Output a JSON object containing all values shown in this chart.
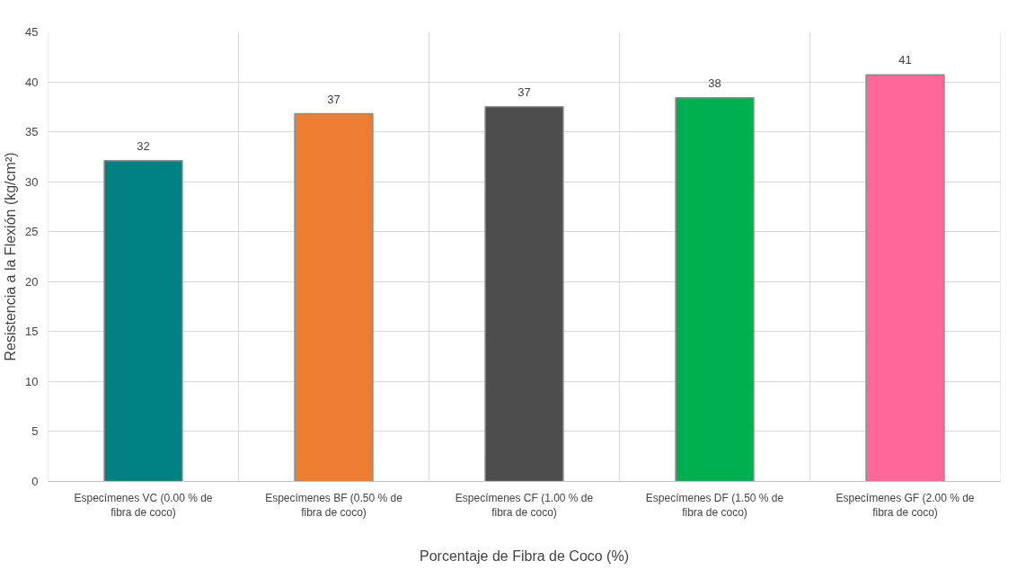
{
  "chart_data": {
    "type": "bar",
    "xlabel": "Porcentaje de Fibra de Coco (%)",
    "ylabel": "Resistencia a la Flexión (kg/cm²)",
    "categories": [
      "Especímenes VC (0.00 % de fibra de coco)",
      "Especímenes BF (0.50 % de fibra de coco)",
      "Especímenes CF (1.00 % de fibra de coco)",
      "Especímenes DF (1.50 % de fibra de coco)",
      "Especímenes GF (2.00 % de fibra de coco)"
    ],
    "values": [
      32.1,
      36.8,
      37.5,
      38.4,
      40.7
    ],
    "value_labels": [
      "32",
      "37",
      "37",
      "38",
      "41"
    ],
    "colors": [
      "#008080",
      "#ed7d31",
      "#4d4d4d",
      "#00b050",
      "#ff6699"
    ],
    "ylim": [
      0,
      45
    ],
    "yticks": [
      0,
      5,
      10,
      15,
      20,
      25,
      30,
      35,
      40,
      45
    ],
    "grid": true
  }
}
